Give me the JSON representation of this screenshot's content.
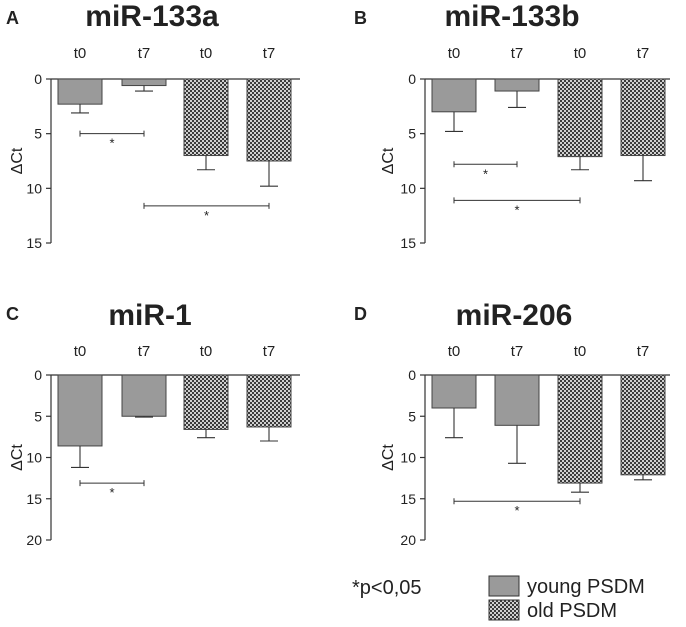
{
  "chart_data": [
    {
      "type": "bar",
      "panel": "A",
      "title": "miR-133a",
      "ylabel": "ΔCt",
      "ylim": [
        0,
        15
      ],
      "yticks": [
        0,
        5,
        10,
        15
      ],
      "categories": [
        "t0",
        "t7",
        "t0",
        "t7"
      ],
      "groups": [
        "young PSDM",
        "young PSDM",
        "old PSDM",
        "old PSDM"
      ],
      "values": [
        2.3,
        0.6,
        7.0,
        7.5
      ],
      "errors": [
        0.8,
        0.5,
        1.3,
        2.3
      ],
      "significance": [
        {
          "from": 0,
          "to": 1,
          "y": 5.0,
          "label": "*"
        },
        {
          "from": 1,
          "to": 3,
          "y": 11.6,
          "label": "*"
        }
      ]
    },
    {
      "type": "bar",
      "panel": "B",
      "title": "miR-133b",
      "ylabel": "ΔCt",
      "ylim": [
        0,
        15
      ],
      "yticks": [
        0,
        5,
        10,
        15
      ],
      "categories": [
        "t0",
        "t7",
        "t0",
        "t7"
      ],
      "groups": [
        "young PSDM",
        "young PSDM",
        "old PSDM",
        "old PSDM"
      ],
      "values": [
        3.0,
        1.1,
        7.1,
        7.0
      ],
      "errors": [
        1.8,
        1.5,
        1.2,
        2.3
      ],
      "significance": [
        {
          "from": 0,
          "to": 1,
          "y": 7.8,
          "label": "*"
        },
        {
          "from": 0,
          "to": 2,
          "y": 11.1,
          "label": "*"
        }
      ]
    },
    {
      "type": "bar",
      "panel": "C",
      "title": "miR-1",
      "ylabel": "ΔCt",
      "ylim": [
        0,
        20
      ],
      "yticks": [
        0,
        5,
        10,
        15,
        20
      ],
      "categories": [
        "t0",
        "t7",
        "t0",
        "t7"
      ],
      "groups": [
        "young PSDM",
        "young PSDM",
        "old PSDM",
        "old PSDM"
      ],
      "values": [
        8.6,
        5.0,
        6.6,
        6.3
      ],
      "errors": [
        2.6,
        0.1,
        1.0,
        1.7
      ],
      "significance": [
        {
          "from": 0,
          "to": 1,
          "y": 13.1,
          "label": "*"
        }
      ]
    },
    {
      "type": "bar",
      "panel": "D",
      "title": "miR-206",
      "ylabel": "ΔCt",
      "ylim": [
        0,
        20
      ],
      "yticks": [
        0,
        5,
        10,
        15,
        20
      ],
      "categories": [
        "t0",
        "t7",
        "t0",
        "t7"
      ],
      "groups": [
        "young PSDM",
        "young PSDM",
        "old PSDM",
        "old PSDM"
      ],
      "values": [
        4.0,
        6.1,
        13.1,
        12.1
      ],
      "errors": [
        3.6,
        4.6,
        1.1,
        0.6
      ],
      "significance": [
        {
          "from": 0,
          "to": 2,
          "y": 15.3,
          "label": "*"
        }
      ]
    }
  ],
  "legend": {
    "note": "*p<0,05",
    "items": [
      {
        "label": "young PSDM",
        "style": "solid",
        "color": "#9a9a9a"
      },
      {
        "label": "old PSDM",
        "style": "checker",
        "color": "#555555"
      }
    ]
  },
  "colors": {
    "young": "#9a9a9a",
    "old_dark": "#3a3a3a",
    "old_light": "#cfcfcf",
    "axis": "#333333"
  }
}
